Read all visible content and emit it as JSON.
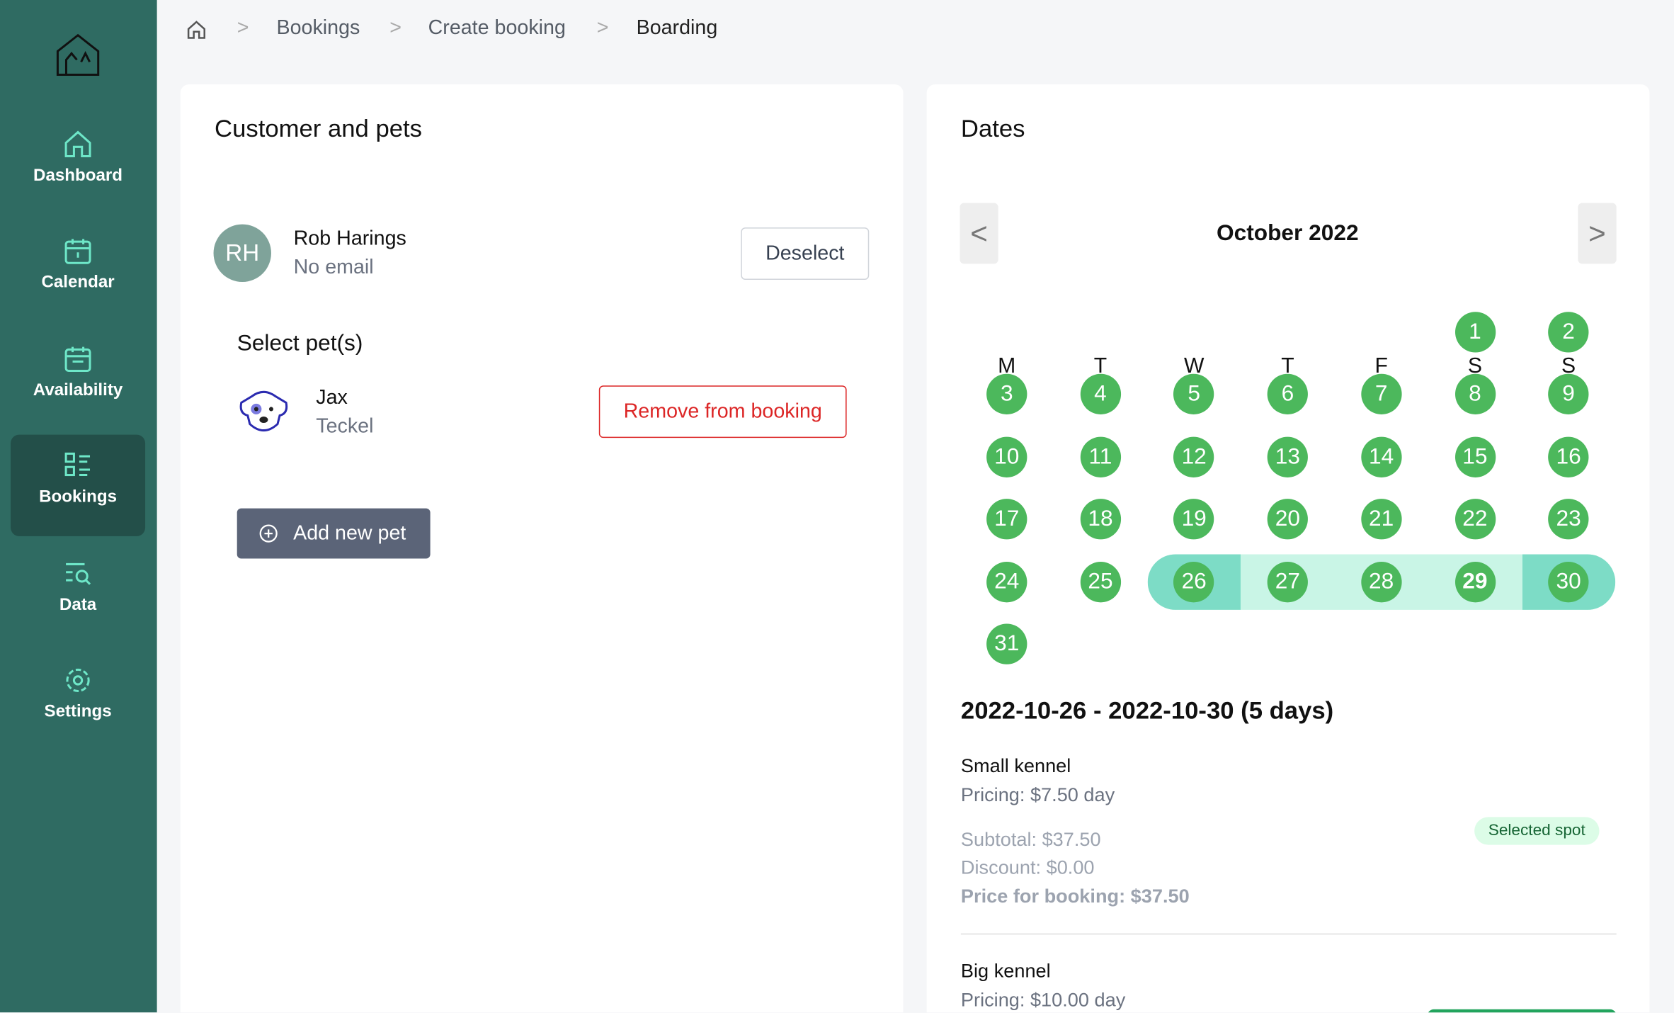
{
  "sidebar": {
    "nav": [
      {
        "label": "Dashboard"
      },
      {
        "label": "Calendar"
      },
      {
        "label": "Availability"
      },
      {
        "label": "Bookings"
      },
      {
        "label": "Data"
      },
      {
        "label": "Settings"
      }
    ]
  },
  "breadcrumb": [
    "Bookings",
    "Create booking",
    "Boarding"
  ],
  "customer_panel": {
    "title": "Customer and pets",
    "customer": {
      "initials": "RH",
      "name": "Rob Harings",
      "email": "No email"
    },
    "deselect_button": "Deselect",
    "pets_title": "Select pet(s)",
    "pets": [
      {
        "name": "Jax",
        "breed": "Teckel",
        "remove_button": "Remove from booking"
      }
    ],
    "add_pet_button": "Add new pet"
  },
  "dates_panel": {
    "title": "Dates",
    "calendar": {
      "prev": "<",
      "next": ">",
      "month": "October 2022",
      "weekdays": [
        "M",
        "T",
        "W",
        "T",
        "F",
        "S",
        "S"
      ],
      "days": [
        null,
        null,
        null,
        null,
        null,
        "1",
        "2",
        "3",
        "4",
        "5",
        "6",
        "7",
        "8",
        "9",
        "10",
        "11",
        "12",
        "13",
        "14",
        "15",
        "16",
        "17",
        "18",
        "19",
        "20",
        "21",
        "22",
        "23",
        "24",
        "25",
        "26",
        "27",
        "28",
        "29",
        "30",
        "31"
      ]
    },
    "range": "2022-10-26 - 2022-10-30 (5 days)",
    "kennels": [
      {
        "name": "Small kennel",
        "pricing": "Pricing: $7.50 day",
        "subtotal": "Subtotal: $37.50",
        "discount": "Discount: $0.00",
        "price": "Price for booking: $37.50",
        "badge": "Selected spot"
      },
      {
        "name": "Big kennel",
        "pricing": "Pricing: $10.00 day"
      }
    ]
  }
}
